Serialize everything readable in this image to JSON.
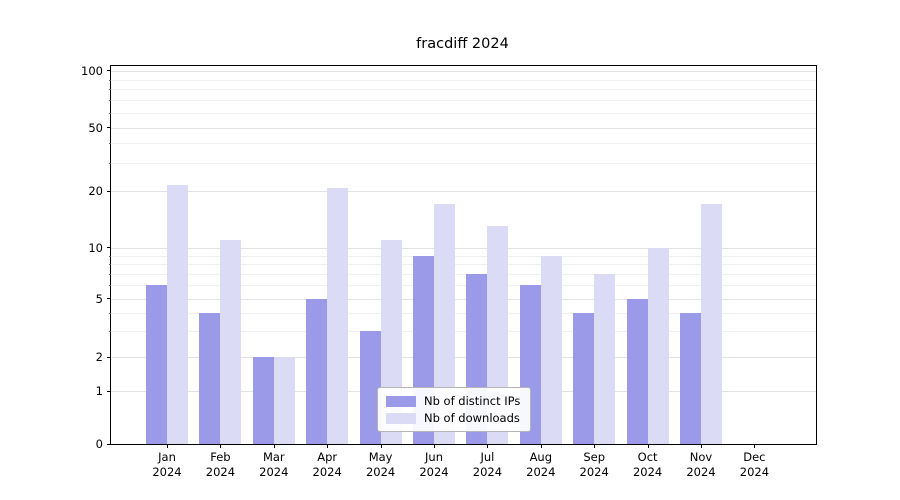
{
  "chart_data": {
    "type": "bar",
    "title": "fracdiff 2024",
    "categories": [
      "Jan",
      "Feb",
      "Mar",
      "Apr",
      "May",
      "Jun",
      "Jul",
      "Aug",
      "Sep",
      "Oct",
      "Nov",
      "Dec"
    ],
    "category_year": "2024",
    "series": [
      {
        "name": "Nb of distinct IPs",
        "color": "#9a9ae9",
        "values": [
          6,
          4,
          2,
          5,
          3,
          9,
          7,
          6,
          4,
          5,
          4,
          0
        ]
      },
      {
        "name": "Nb of downloads",
        "color": "#dbdbf6",
        "values": [
          22,
          11,
          2,
          21,
          11,
          17,
          13,
          9,
          7,
          10,
          17,
          0
        ]
      }
    ],
    "yticks": [
      0,
      1,
      2,
      5,
      10,
      20,
      50,
      100
    ],
    "yaxis_scale": "symlog",
    "ylim": [
      0,
      110
    ],
    "grid": true,
    "legend_position": "lower center"
  }
}
